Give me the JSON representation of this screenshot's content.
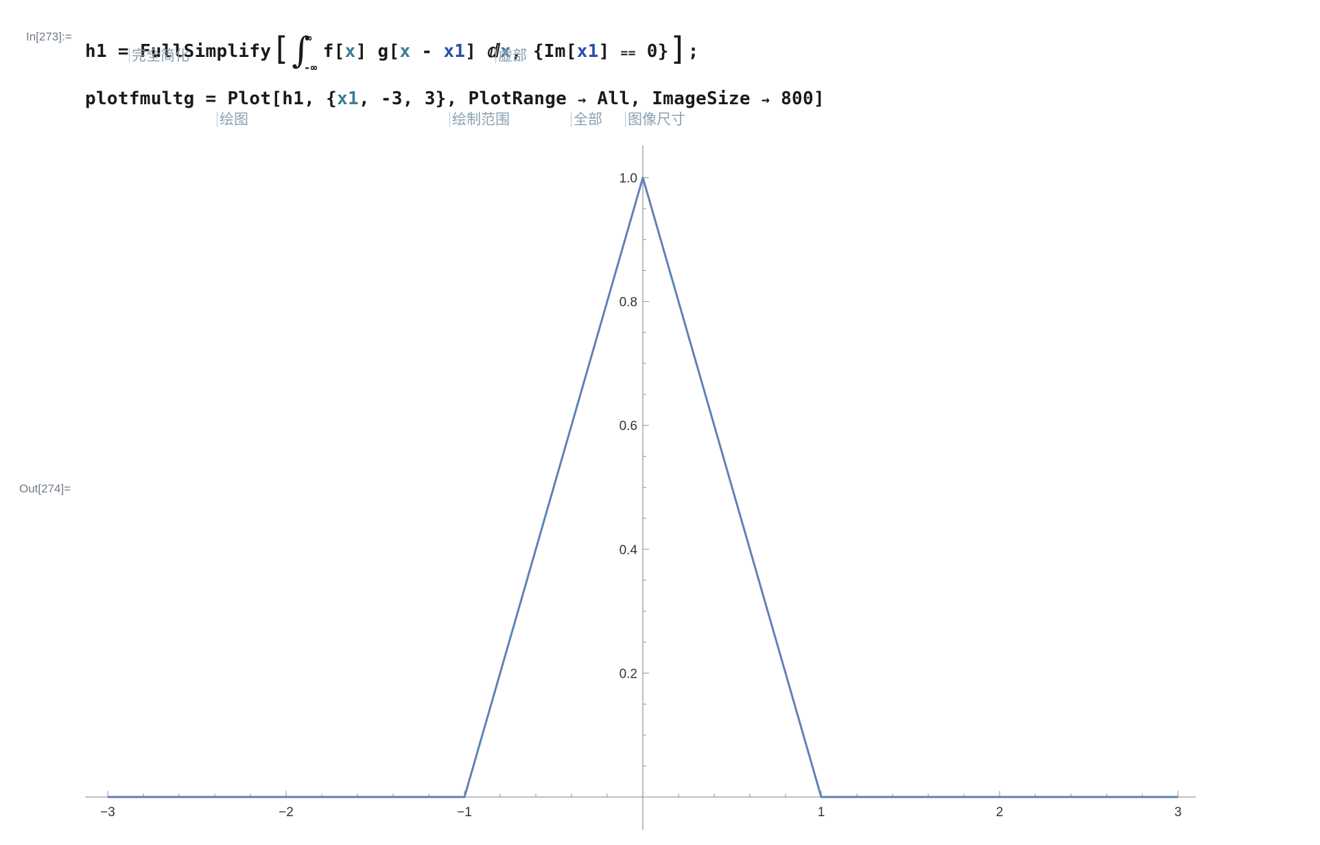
{
  "cells": {
    "in_label": "In[273]:=",
    "out_label": "Out[274]=",
    "line1": {
      "lhs": "h1",
      "eq": "=",
      "fn": "FullSimplify",
      "open": "[",
      "integral": "∫",
      "upper": "∞",
      "lower": "-∞",
      "fx": "f",
      "b1": "[",
      "x": "x",
      "b2": "]",
      "gx": "g",
      "b3": "[",
      "x2": "x",
      "minus": "-",
      "x1": "x1",
      "b4": "]",
      "dx": "ⅆ",
      "dxv": "x",
      "comma": ",",
      "brace_open": "{",
      "im": "Im",
      "b5": "[",
      "x1b": "x1",
      "b6": "]",
      "eqeq": "==",
      "zero": "0",
      "brace_close": "}",
      "close": "]",
      "semi": ";",
      "hint_fullsimplify": "完全简化",
      "hint_im": "虚部"
    },
    "line2": {
      "lhs": "plotfmultg",
      "eq": "=",
      "fn": "Plot",
      "open": "[",
      "h1": "h1,",
      "brace_open": "{",
      "x1": "x1",
      "rest": ", -3, 3},",
      "opt1": "PlotRange",
      "arrow1": "→",
      "val1": "All,",
      "opt2": "ImageSize",
      "arrow2": "→",
      "val2": "800",
      "close": "]",
      "hint_plot": "绘图",
      "hint_plotrange": "绘制范围",
      "hint_all": "全部",
      "hint_imagesize": "图像尺寸"
    }
  },
  "chart_data": {
    "type": "line",
    "title": "",
    "xlabel": "",
    "ylabel": "",
    "xlim": [
      -3,
      3
    ],
    "ylim": [
      0,
      1.05
    ],
    "x_ticks": [
      "-3",
      "-2",
      "-1",
      "1",
      "2",
      "3"
    ],
    "y_ticks": [
      "0.2",
      "0.4",
      "0.6",
      "0.8",
      "1.0"
    ],
    "series": [
      {
        "color": "#5e81b5",
        "x": [
          -3,
          -1,
          0,
          1,
          3
        ],
        "y": [
          0,
          0,
          1,
          0,
          0
        ]
      }
    ],
    "grid": false,
    "legend": "none"
  }
}
